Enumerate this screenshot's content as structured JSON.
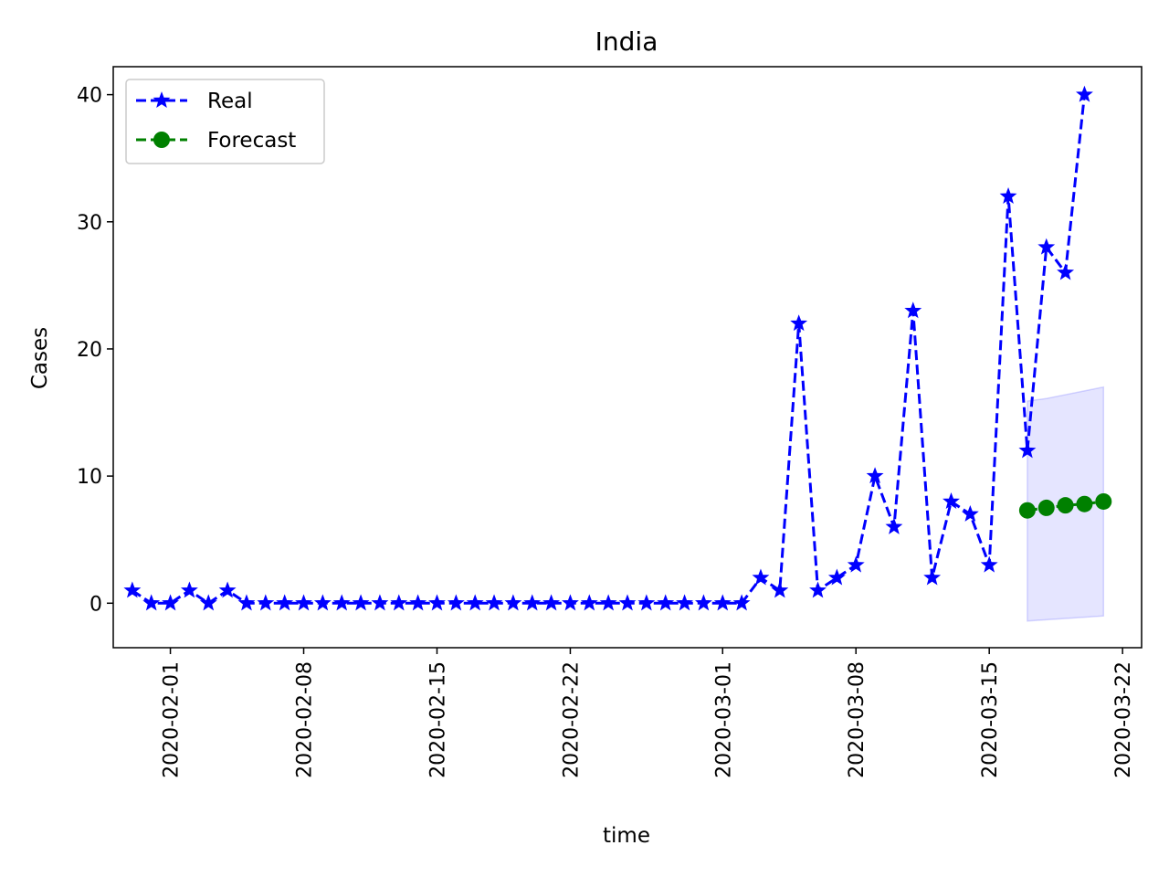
{
  "chart_data": {
    "type": "line",
    "title": "India",
    "xlabel": "time",
    "ylabel": "Cases",
    "x_axis_kind": "date",
    "xlim": [
      "2020-01-29",
      "2020-03-23"
    ],
    "ylim": [
      -3.5,
      42.2
    ],
    "x_ticks": [
      "2020-02-01",
      "2020-02-08",
      "2020-02-15",
      "2020-02-22",
      "2020-03-01",
      "2020-03-08",
      "2020-03-15",
      "2020-03-22"
    ],
    "y_ticks": [
      "0",
      "10",
      "20",
      "30",
      "40"
    ],
    "grid": false,
    "legend_position": "top-left",
    "series": [
      {
        "name": "Real",
        "color": "#0000ff",
        "marker": "star",
        "line_style": "dashed",
        "start_date": "2020-01-30",
        "values": [
          1,
          0,
          0,
          1,
          0,
          1,
          0,
          0,
          0,
          0,
          0,
          0,
          0,
          0,
          0,
          0,
          0,
          0,
          0,
          0,
          0,
          0,
          0,
          0,
          0,
          0,
          0,
          0,
          0,
          0,
          0,
          0,
          0,
          2,
          1,
          22,
          1,
          2,
          3,
          10,
          6,
          23,
          2,
          8,
          7,
          3,
          32,
          12,
          28,
          26,
          40
        ]
      },
      {
        "name": "Forecast",
        "color": "#008000",
        "marker": "circle",
        "line_style": "dashed",
        "start_date": "2020-03-17",
        "values": [
          7.3,
          7.5,
          7.7,
          7.8,
          8.0
        ]
      }
    ],
    "confidence_band": {
      "color": "#0000ff",
      "start_date": "2020-03-17",
      "upper": [
        15.9,
        16.1,
        16.4,
        16.7,
        17.0
      ],
      "lower": [
        -1.4,
        -1.3,
        -1.2,
        -1.1,
        -1.0
      ]
    }
  }
}
